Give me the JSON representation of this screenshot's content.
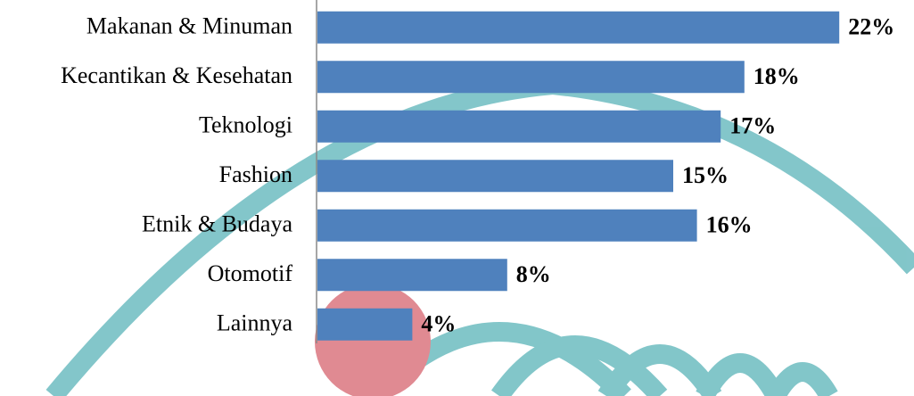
{
  "chart_data": {
    "type": "bar",
    "orientation": "horizontal",
    "categories": [
      "Makanan & Minuman",
      "Kecantikan & Kesehatan",
      "Teknologi",
      "Fashion",
      "Etnik & Budaya",
      "Otomotif",
      "Lainnya"
    ],
    "values": [
      22,
      18,
      17,
      15,
      16,
      8,
      4
    ],
    "value_labels": [
      "22%",
      "18%",
      "17%",
      "15%",
      "16%",
      "8%",
      "4%"
    ],
    "color": "#4f81bd"
  }
}
